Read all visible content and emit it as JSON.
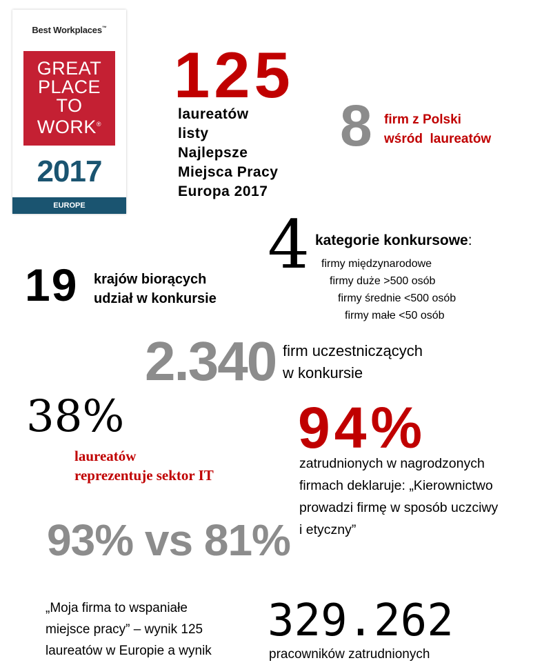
{
  "badge": {
    "top_text": "Best Workplaces",
    "tm": "™",
    "lines": [
      "GREAT",
      "PLACE",
      "TO",
      "WORK"
    ],
    "registered": "®",
    "year": "2017",
    "region": "EUROPE",
    "colors": {
      "red": "#c42033",
      "blue": "#1a5470"
    }
  },
  "stats": {
    "laureaci": {
      "number": "125",
      "lines": [
        "laureatów",
        "listy",
        "Najlepsze",
        "Miejsca Pracy",
        "Europa 2017"
      ]
    },
    "polska": {
      "number": "8",
      "lines": [
        "firm z Polski",
        "wśród  laureatów"
      ]
    },
    "kategorie": {
      "number": "4",
      "title": "kategorie konkursowe",
      "colon": ":",
      "items": [
        "firmy międzynarodowe",
        "firmy duże >500 osób",
        "firmy średnie <500 osób",
        "firmy małe <50 osób"
      ]
    },
    "kraje": {
      "number": "19",
      "lines": [
        "krajów biorących",
        "udział w konkursie"
      ]
    },
    "uczestnicy": {
      "number": "2.340",
      "lines": [
        "firm uczestniczących",
        "w konkursie"
      ]
    },
    "sektor_it": {
      "number": "38%",
      "lines": [
        "laureatów",
        "reprezentuje sektor IT"
      ]
    },
    "uczciwosc": {
      "number": "94%",
      "lines": [
        "zatrudnionych w nagrodzonych",
        "firmach deklaruje: „Kierownictwo",
        "prowadzi firmę w sposób uczciwy",
        "i etyczny”"
      ]
    },
    "porownanie": {
      "number": "93% vs 81%"
    },
    "cytat": {
      "lines": [
        "„Moja firma to wspaniałe",
        "miejsce pracy” – wynik 125",
        "laureatów w Europie a wynik"
      ]
    },
    "pracownicy": {
      "number": "329.262",
      "text": "pracowników zatrudnionych"
    }
  },
  "colors": {
    "accent_red": "#c00000",
    "grey": "#8c8c8c",
    "text": "#000000"
  }
}
